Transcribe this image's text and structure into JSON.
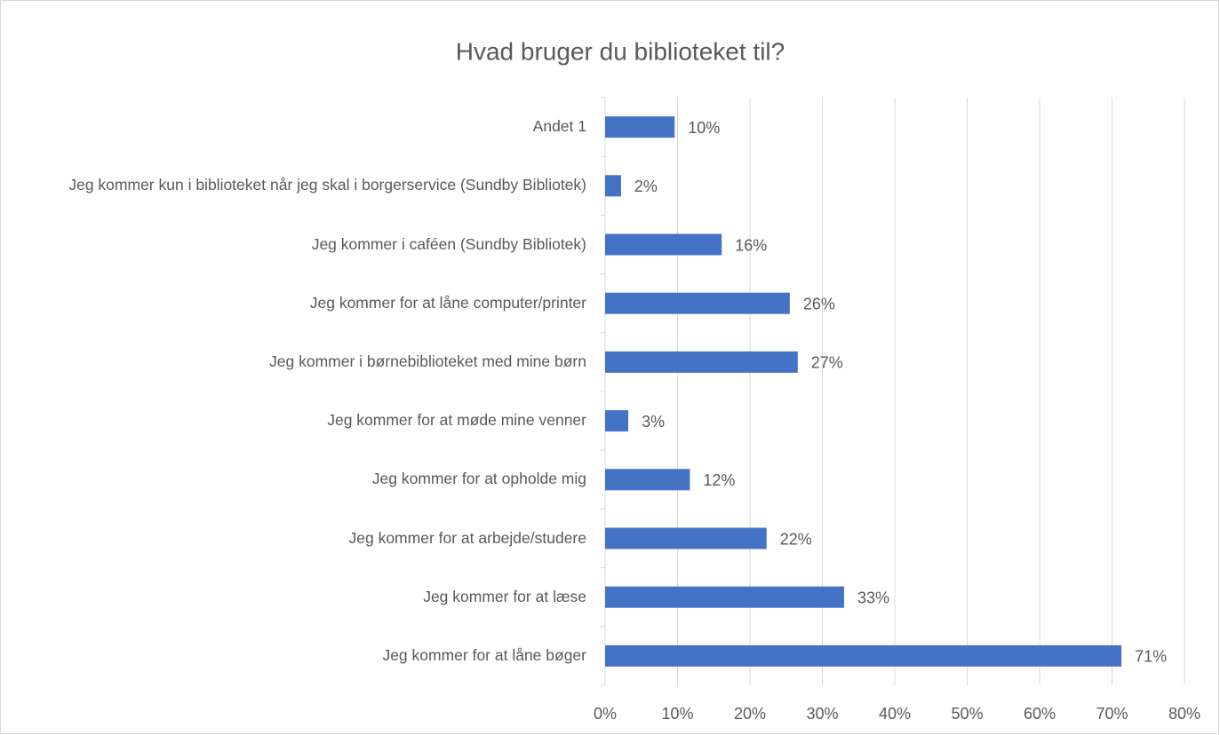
{
  "chart_data": {
    "type": "barh",
    "title": "Hvad bruger du biblioteket til?",
    "categories": [
      "Andet 1",
      "Jeg kommer kun i biblioteket når jeg skal i borgerservice (Sundby Bibliotek)",
      "Jeg kommer i caféen (Sundby Bibliotek)",
      "Jeg kommer for at låne computer/printer",
      "Jeg kommer i børnebiblioteket med mine børn",
      "Jeg kommer for at møde mine venner",
      "Jeg kommer for at opholde mig",
      "Jeg kommer for at arbejde/studere",
      "Jeg kommer for at læse",
      "Jeg kommer for at låne bøger"
    ],
    "values": [
      9.6,
      2.2,
      16.1,
      25.5,
      26.6,
      3.2,
      11.7,
      22.3,
      33.0,
      71.3
    ],
    "value_labels": [
      "10%",
      "2%",
      "16%",
      "26%",
      "27%",
      "3%",
      "12%",
      "22%",
      "33%",
      "71%"
    ],
    "color": "#4472c4",
    "xlim": [
      0,
      80
    ],
    "xticks": [
      {
        "value": 0,
        "label": "0%"
      },
      {
        "value": 10,
        "label": "10%"
      },
      {
        "value": 20,
        "label": "20%"
      },
      {
        "value": 30,
        "label": "30%"
      },
      {
        "value": 40,
        "label": "40%"
      },
      {
        "value": 50,
        "label": "50%"
      },
      {
        "value": 60,
        "label": "60%"
      },
      {
        "value": 70,
        "label": "70%"
      },
      {
        "value": 80,
        "label": "80%"
      }
    ],
    "grid": true
  }
}
